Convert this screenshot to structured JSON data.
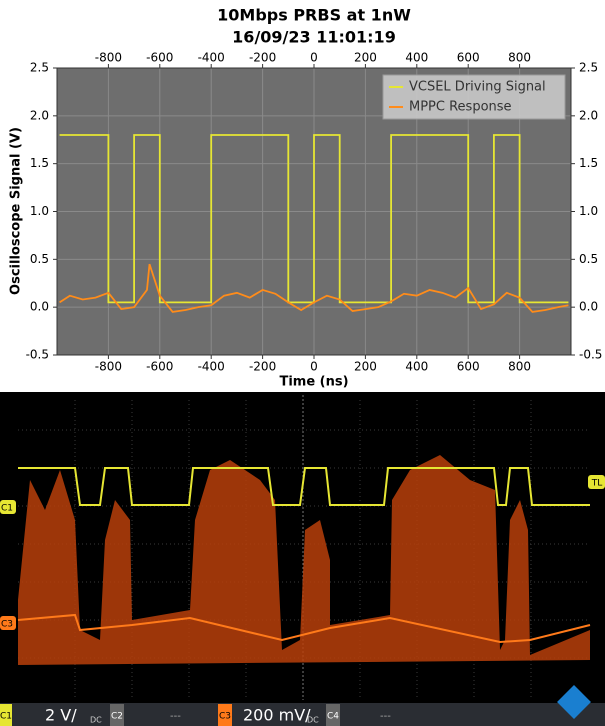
{
  "chart_data": {
    "type": "line",
    "title": "10Mbps PRBS at 1nW",
    "subtitle": "16/09/23 11:01:19",
    "x_label": "Time (ns)",
    "y_label": "Oscilloscope Signal (V)",
    "xlim": [
      -1000,
      1000
    ],
    "xticks": [
      -800,
      -600,
      -400,
      -200,
      0,
      200,
      400,
      600,
      800
    ],
    "ylim": [
      -0.5,
      2.5
    ],
    "yticks": [
      -0.5,
      {
        "value": 0,
        "label": "0.0"
      },
      0.5,
      {
        "value": 1,
        "label": "1.0"
      },
      1.5,
      {
        "value": 2,
        "label": "2.0"
      },
      2.5
    ],
    "grid": true,
    "legend": "upper right",
    "series": [
      {
        "name": "VCSEL Driving Signal",
        "color": "#e6e633",
        "x": [
          -990,
          -800,
          -800,
          -700,
          -700,
          -600,
          -600,
          -400,
          -400,
          -100,
          -100,
          0,
          0,
          100,
          100,
          300,
          300,
          600,
          600,
          700,
          700,
          800,
          800,
          990
        ],
        "values": [
          1.8,
          1.8,
          0.05,
          0.05,
          1.8,
          1.8,
          0.05,
          0.05,
          1.8,
          1.8,
          0.05,
          0.05,
          1.8,
          1.8,
          0.05,
          0.05,
          1.8,
          1.8,
          0.05,
          0.05,
          1.8,
          1.8,
          0.05,
          0.05
        ]
      },
      {
        "name": "MPPC Response",
        "color": "#ff8c1a",
        "x": [
          -990,
          -950,
          -900,
          -850,
          -800,
          -750,
          -700,
          -650,
          -640,
          -600,
          -550,
          -500,
          -450,
          -400,
          -350,
          -300,
          -250,
          -200,
          -150,
          -100,
          -50,
          0,
          50,
          100,
          150,
          200,
          250,
          300,
          350,
          400,
          450,
          500,
          550,
          600,
          650,
          700,
          750,
          800,
          850,
          900,
          950,
          990
        ],
        "values": [
          0.05,
          0.12,
          0.08,
          0.1,
          0.15,
          -0.02,
          0.0,
          0.18,
          0.45,
          0.12,
          -0.05,
          -0.03,
          0.0,
          0.02,
          0.12,
          0.15,
          0.1,
          0.18,
          0.14,
          0.05,
          -0.03,
          0.05,
          0.12,
          0.08,
          -0.04,
          -0.02,
          0.0,
          0.06,
          0.14,
          0.12,
          0.18,
          0.15,
          0.1,
          0.2,
          -0.02,
          0.03,
          0.15,
          0.1,
          -0.05,
          -0.03,
          0.0,
          0.02
        ]
      }
    ]
  },
  "scope": {
    "markers": {
      "c1": "C1",
      "tl": "TL",
      "c3": "C3"
    },
    "status_bar": [
      {
        "channel": "C1",
        "scale": "2 V/",
        "coupling": "DC"
      },
      {
        "channel": "C2",
        "scale": "---"
      },
      {
        "channel": "C3",
        "scale": "200 mV/",
        "coupling": "DC"
      },
      {
        "channel": "C4",
        "scale": "---"
      }
    ]
  }
}
